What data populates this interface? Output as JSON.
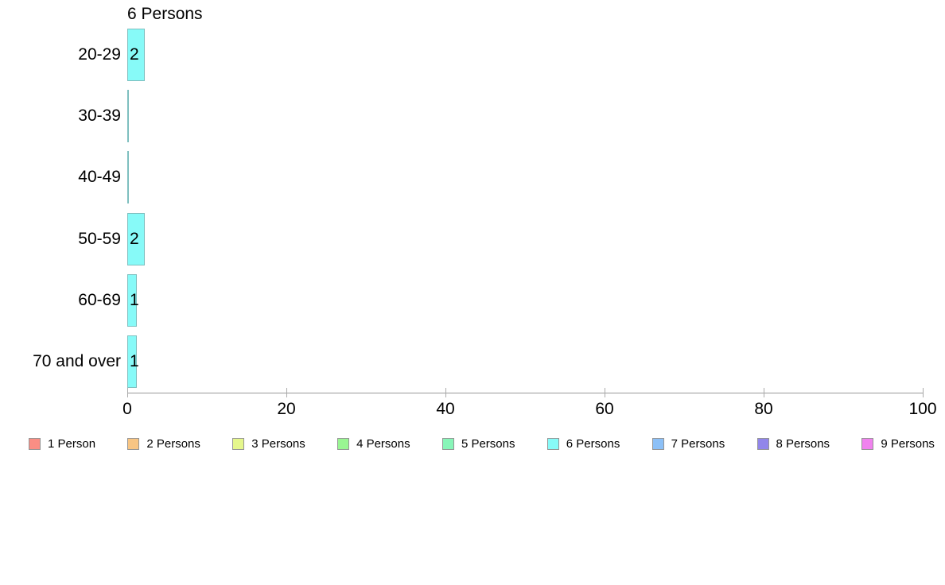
{
  "chart_data": {
    "type": "bar",
    "orientation": "horizontal",
    "title": "6 Persons",
    "categories": [
      "20-29",
      "30-39",
      "40-49",
      "50-59",
      "60-69",
      "70 and over"
    ],
    "values": [
      2,
      0,
      0,
      2,
      1,
      1
    ],
    "bar_labels": [
      "2",
      "",
      "",
      "2",
      "1",
      "1"
    ],
    "xlabel": "",
    "ylabel": "",
    "xlim": [
      0,
      100
    ],
    "x_ticks": [
      0,
      20,
      40,
      60,
      80,
      100
    ],
    "grid": false,
    "legend_position": "bottom",
    "series_name": "6 Persons",
    "series_color": "#87FAF8",
    "bar_border_color": "#7FBFBF",
    "axis_color": "#999999",
    "text_color": "#000000",
    "background_color": "#FFFFFF",
    "legend": [
      {
        "label": "1 Person",
        "color": "#F98E84"
      },
      {
        "label": "2 Persons",
        "color": "#F8C583"
      },
      {
        "label": "3 Persons",
        "color": "#E5F78C"
      },
      {
        "label": "4 Persons",
        "color": "#99F592"
      },
      {
        "label": "5 Persons",
        "color": "#88F5B8"
      },
      {
        "label": "6 Persons",
        "color": "#87FAF8"
      },
      {
        "label": "7 Persons",
        "color": "#8CC0F7"
      },
      {
        "label": "8 Persons",
        "color": "#9186EA"
      },
      {
        "label": "9 Persons",
        "color": "#F082EE"
      }
    ]
  }
}
